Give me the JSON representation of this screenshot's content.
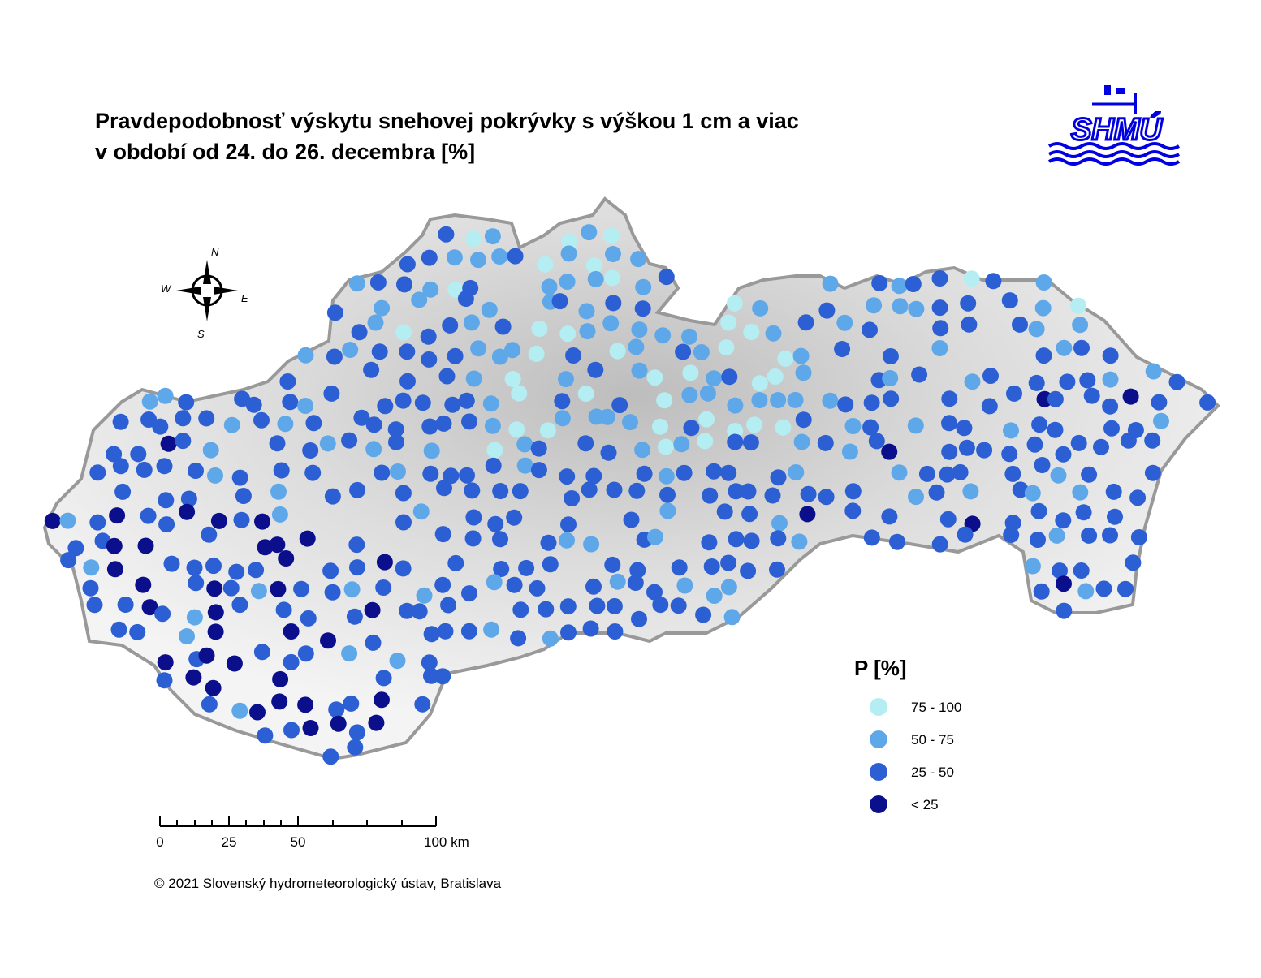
{
  "header": {
    "title_lines": [
      "Pravdepodobnosť výskytu snehovej pokrývky s výškou 1 cm a viac",
      "v období od 24. do 26. decembra [%]"
    ],
    "logo": "SHMÚ"
  },
  "compass": {
    "n": "N",
    "w": "W",
    "e": "E",
    "s": "S"
  },
  "legend": {
    "title": "P [%]",
    "items": [
      {
        "label": "75 - 100",
        "color": "#b5eef2"
      },
      {
        "label": "50 - 75",
        "color": "#5ea8ea"
      },
      {
        "label": "25 - 50",
        "color": "#2b5fd3"
      },
      {
        "label": "< 25",
        "color": "#0b0f8c"
      }
    ]
  },
  "scale": {
    "labels": [
      "0",
      "25",
      "50",
      "100 km"
    ]
  },
  "footer": {
    "copyright": "© 2021 Slovenský hydrometeorologický ústav, Bratislava"
  }
}
